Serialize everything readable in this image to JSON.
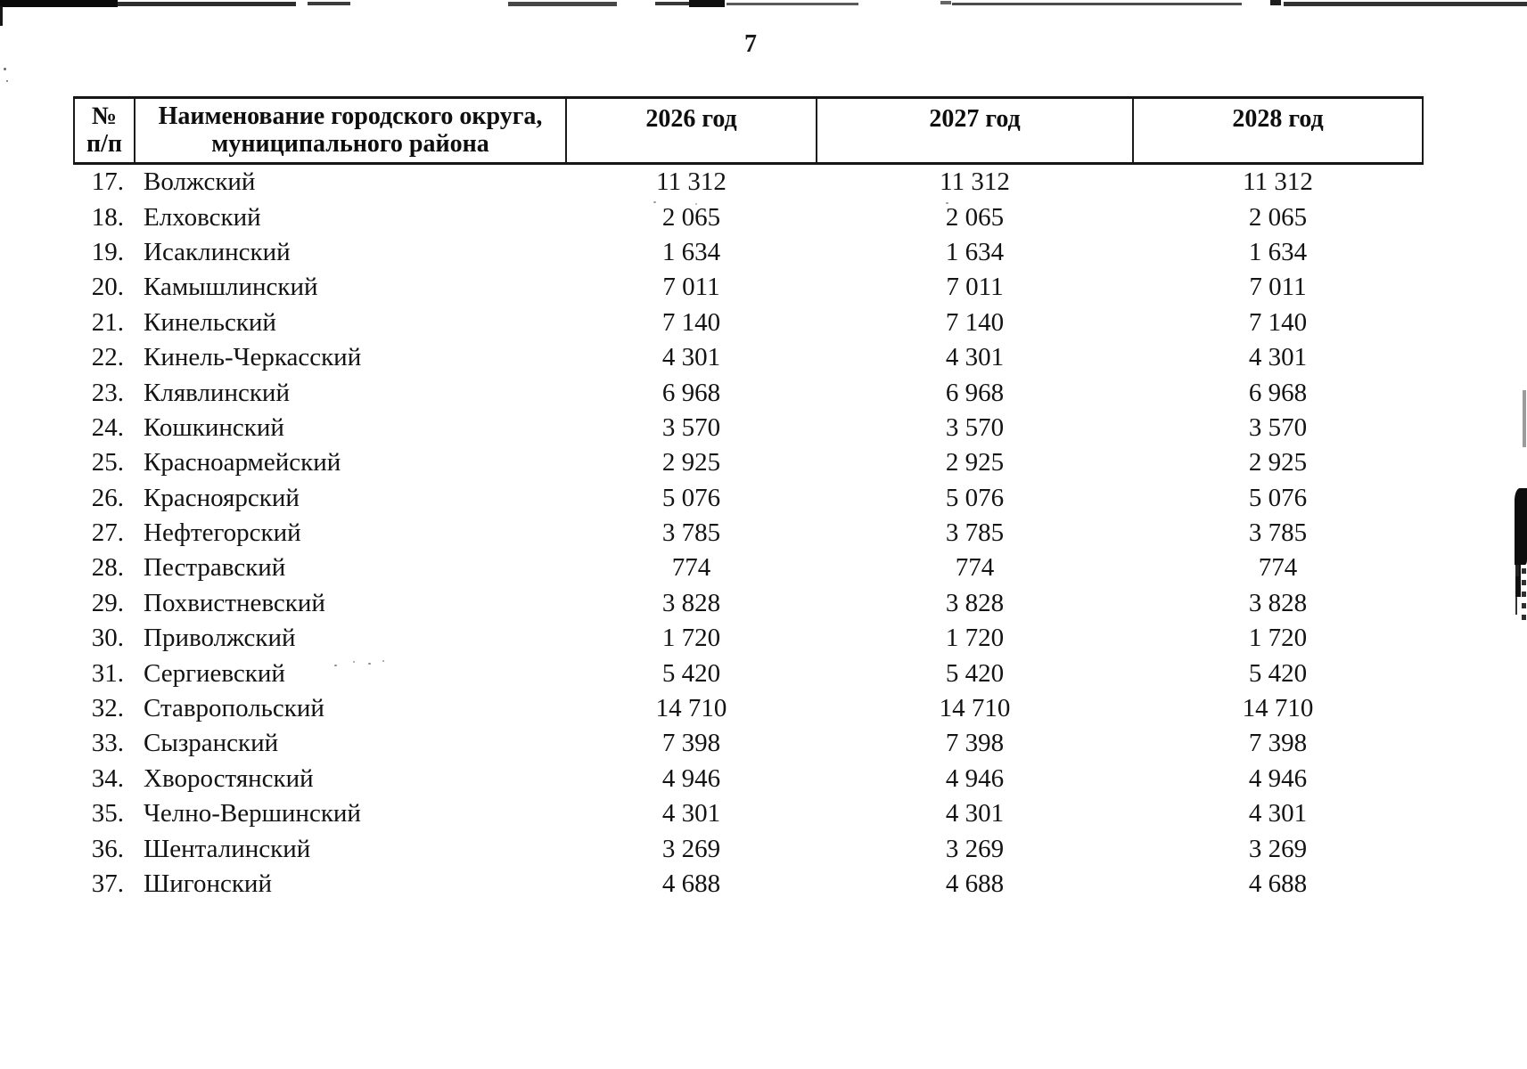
{
  "page_number": "7",
  "table": {
    "headers": {
      "num": [
        "№",
        "п/п"
      ],
      "name": [
        "Наименование городского округа,",
        "муниципального района"
      ],
      "years": [
        "2026 год",
        "2027 год",
        "2028 год"
      ]
    },
    "rows": [
      {
        "num": "17.",
        "name": "Волжский",
        "values": [
          "11 312",
          "11 312",
          "11 312"
        ]
      },
      {
        "num": "18.",
        "name": "Елховский",
        "values": [
          "2 065",
          "2 065",
          "2 065"
        ]
      },
      {
        "num": "19.",
        "name": "Исаклинский",
        "values": [
          "1 634",
          "1 634",
          "1 634"
        ]
      },
      {
        "num": "20.",
        "name": "Камышлинский",
        "values": [
          "7 011",
          "7 011",
          "7 011"
        ]
      },
      {
        "num": "21.",
        "name": "Кинельский",
        "values": [
          "7 140",
          "7 140",
          "7 140"
        ]
      },
      {
        "num": "22.",
        "name": "Кинель-Черкасский",
        "values": [
          "4 301",
          "4 301",
          "4 301"
        ]
      },
      {
        "num": "23.",
        "name": "Клявлинский",
        "values": [
          "6 968",
          "6 968",
          "6 968"
        ]
      },
      {
        "num": "24.",
        "name": "Кошкинский",
        "values": [
          "3 570",
          "3 570",
          "3 570"
        ]
      },
      {
        "num": "25.",
        "name": "Красноармейский",
        "values": [
          "2 925",
          "2 925",
          "2 925"
        ]
      },
      {
        "num": "26.",
        "name": "Красноярский",
        "values": [
          "5 076",
          "5 076",
          "5 076"
        ]
      },
      {
        "num": "27.",
        "name": "Нефтегорский",
        "values": [
          "3 785",
          "3 785",
          "3 785"
        ]
      },
      {
        "num": "28.",
        "name": "Пестравский",
        "values": [
          "774",
          "774",
          "774"
        ]
      },
      {
        "num": "29.",
        "name": "Похвистневский",
        "values": [
          "3 828",
          "3 828",
          "3 828"
        ]
      },
      {
        "num": "30.",
        "name": "Приволжский",
        "values": [
          "1 720",
          "1 720",
          "1 720"
        ]
      },
      {
        "num": "31.",
        "name": "Сергиевский",
        "values": [
          "5 420",
          "5 420",
          "5 420"
        ]
      },
      {
        "num": "32.",
        "name": "Ставропольский",
        "values": [
          "14 710",
          "14 710",
          "14 710"
        ]
      },
      {
        "num": "33.",
        "name": "Сызранский",
        "values": [
          "7 398",
          "7 398",
          "7 398"
        ]
      },
      {
        "num": "34.",
        "name": "Хворостянский",
        "values": [
          "4 946",
          "4 946",
          "4 946"
        ]
      },
      {
        "num": "35.",
        "name": "Челно-Вершинский",
        "values": [
          "4 301",
          "4 301",
          "4 301"
        ]
      },
      {
        "num": "36.",
        "name": "Шенталинский",
        "values": [
          "3 269",
          "3 269",
          "3 269"
        ]
      },
      {
        "num": "37.",
        "name": "Шигонский",
        "values": [
          "4 688",
          "4 688",
          "4 688"
        ]
      }
    ]
  }
}
